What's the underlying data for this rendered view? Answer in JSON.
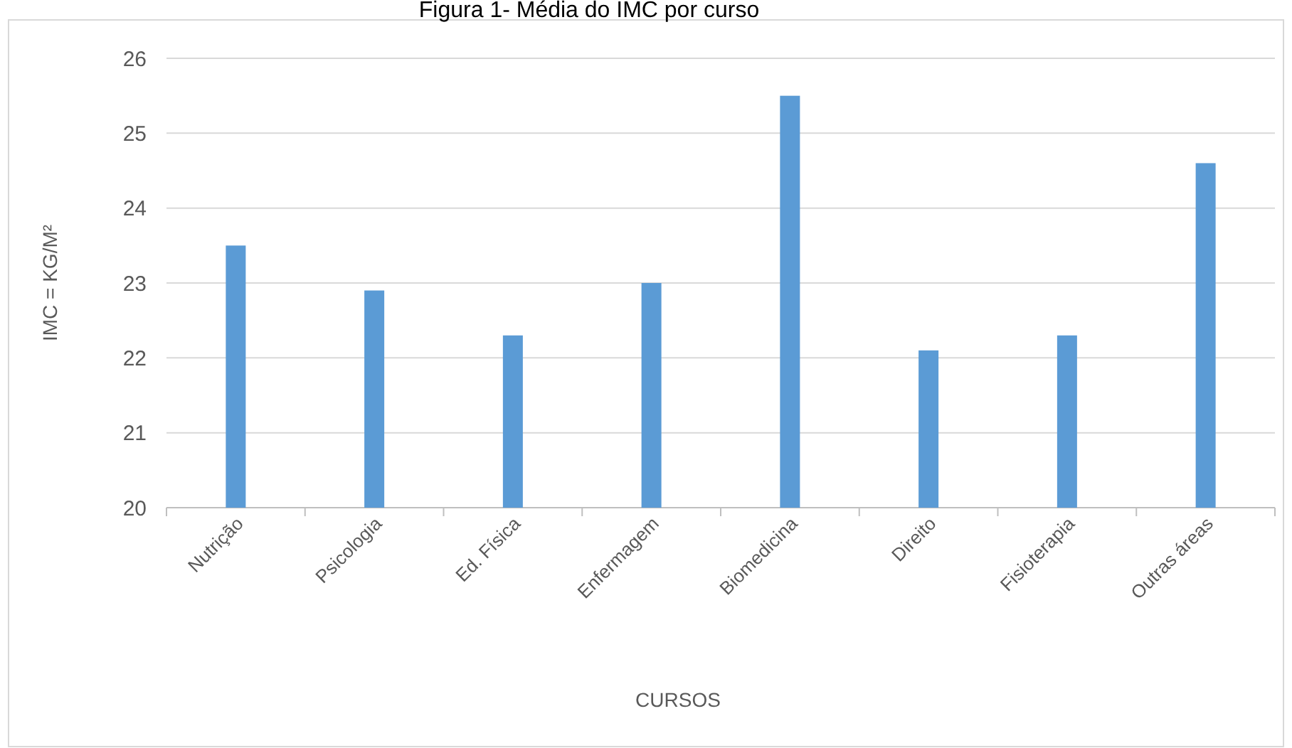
{
  "chart_data": {
    "type": "bar",
    "title": "Figura 1- Média do IMC por curso",
    "xlabel": "CURSOS",
    "ylabel": "IMC = KG/M²",
    "categories": [
      "Nutrição",
      "Psicologia",
      "Ed. Física",
      "Enfermagem",
      "Biomedicina",
      "Direito",
      "Fisioterapia",
      "Outras áreas"
    ],
    "values": [
      23.5,
      22.9,
      22.3,
      23.0,
      25.5,
      22.1,
      22.3,
      24.6
    ],
    "color": "#5b9bd5",
    "ylim": [
      20,
      26
    ],
    "yticks": [
      20,
      21,
      22,
      23,
      24,
      25,
      26
    ],
    "grid": "y"
  }
}
